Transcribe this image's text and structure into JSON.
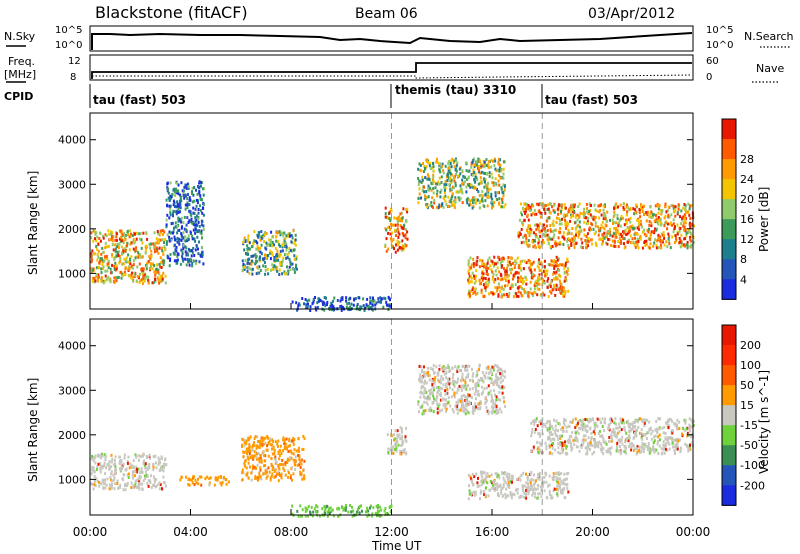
{
  "header": {
    "station": "Blackstone (fitACF)",
    "beam": "Beam 06",
    "date": "03/Apr/2012"
  },
  "status_panels": {
    "nsky_label": "N.Sky",
    "nsearch_label": "N.Search",
    "freq_label_1": "Freq.",
    "freq_label_2": "[MHz]",
    "nave_label": "Nave",
    "cpid_label": "CPID",
    "left_ticks": [
      "10^5",
      "10^0"
    ],
    "right_ticks": [
      "10^5",
      "10^0"
    ],
    "freq_ticks": [
      "12",
      "8"
    ],
    "nave_ticks": [
      "60",
      "0"
    ],
    "cpid_segments": [
      {
        "start_hour": 0,
        "end_hour": 12,
        "label": "tau (fast) 503"
      },
      {
        "start_hour": 12,
        "end_hour": 18,
        "label": "themis (tau) 3310"
      },
      {
        "start_hour": 18,
        "end_hour": 24,
        "label": "tau (fast) 503"
      }
    ]
  },
  "chart_data": [
    {
      "type": "heatmap",
      "title": "Power",
      "xlabel": "Time UT",
      "ylabel": "Slant Range [km]",
      "x_tick_labels": [
        "00:00",
        "04:00",
        "08:00",
        "12:00",
        "16:00",
        "20:00",
        "00:00"
      ],
      "x_ticks_hours": [
        0,
        4,
        8,
        12,
        16,
        20,
        24
      ],
      "xlim_hours": [
        0,
        24
      ],
      "ylim": [
        200,
        4600
      ],
      "y_ticks": [
        1000,
        2000,
        3000,
        4000
      ],
      "colorbar": {
        "label": "Power [dB]",
        "ticks": [
          "4",
          "8",
          "12",
          "16",
          "20",
          "24",
          "28"
        ],
        "colors": [
          "#1a2be0",
          "#2356b8",
          "#1d7f8e",
          "#3c9a5a",
          "#8fcb6a",
          "#f4c400",
          "#ff9a00",
          "#ff5a00",
          "#e81800"
        ]
      },
      "echo_regions": [
        {
          "t0": 0.0,
          "t1": 3.0,
          "r0": 800,
          "r1": 2000,
          "level": 0.65
        },
        {
          "t0": 3.0,
          "t1": 4.5,
          "r0": 1200,
          "r1": 3100,
          "level": 0.2
        },
        {
          "t0": 6.0,
          "t1": 8.2,
          "r0": 1000,
          "r1": 2000,
          "level": 0.4
        },
        {
          "t0": 11.7,
          "t1": 12.6,
          "r0": 1500,
          "r1": 2500,
          "level": 0.7
        },
        {
          "t0": 13.0,
          "t1": 16.5,
          "r0": 2500,
          "r1": 3600,
          "level": 0.5
        },
        {
          "t0": 15.0,
          "t1": 19.0,
          "r0": 500,
          "r1": 1400,
          "level": 0.75
        },
        {
          "t0": 17.0,
          "t1": 24.0,
          "r0": 1600,
          "r1": 2600,
          "level": 0.7
        },
        {
          "t0": 8.0,
          "t1": 12.0,
          "r0": 200,
          "r1": 500,
          "level": 0.15
        }
      ]
    },
    {
      "type": "heatmap",
      "title": "Velocity",
      "xlabel": "Time UT",
      "ylabel": "Slant Range [km]",
      "x_tick_labels": [
        "00:00",
        "04:00",
        "08:00",
        "12:00",
        "16:00",
        "20:00",
        "00:00"
      ],
      "x_ticks_hours": [
        0,
        4,
        8,
        12,
        16,
        20,
        24
      ],
      "xlim_hours": [
        0,
        24
      ],
      "ylim": [
        200,
        4600
      ],
      "y_ticks": [
        1000,
        2000,
        3000,
        4000
      ],
      "colorbar": {
        "label": "Velocity [m s^-1]",
        "ticks": [
          "200",
          "100",
          "50",
          "15",
          "-15",
          "-50",
          "-100",
          "-200"
        ],
        "colors": [
          "#1a2be0",
          "#2356b8",
          "#3a8f55",
          "#6fd13c",
          "#c8c8c0",
          "#ff9a00",
          "#ff5a00",
          "#ff2a00",
          "#e81800"
        ]
      },
      "echo_regions": [
        {
          "t0": 0.0,
          "t1": 3.0,
          "r0": 800,
          "r1": 1600,
          "class": "gray"
        },
        {
          "t0": 6.0,
          "t1": 8.5,
          "r0": 1000,
          "r1": 2000,
          "class": "orange"
        },
        {
          "t0": 3.5,
          "t1": 5.5,
          "r0": 900,
          "r1": 1100,
          "class": "orange"
        },
        {
          "t0": 11.8,
          "t1": 12.6,
          "r0": 1600,
          "r1": 2200,
          "class": "gray"
        },
        {
          "t0": 13.0,
          "t1": 16.5,
          "r0": 2500,
          "r1": 3600,
          "class": "gray"
        },
        {
          "t0": 15.0,
          "t1": 19.0,
          "r0": 600,
          "r1": 1200,
          "class": "gray"
        },
        {
          "t0": 17.5,
          "t1": 24.0,
          "r0": 1600,
          "r1": 2400,
          "class": "gray"
        },
        {
          "t0": 8.0,
          "t1": 12.0,
          "r0": 200,
          "r1": 450,
          "class": "green"
        }
      ]
    }
  ]
}
